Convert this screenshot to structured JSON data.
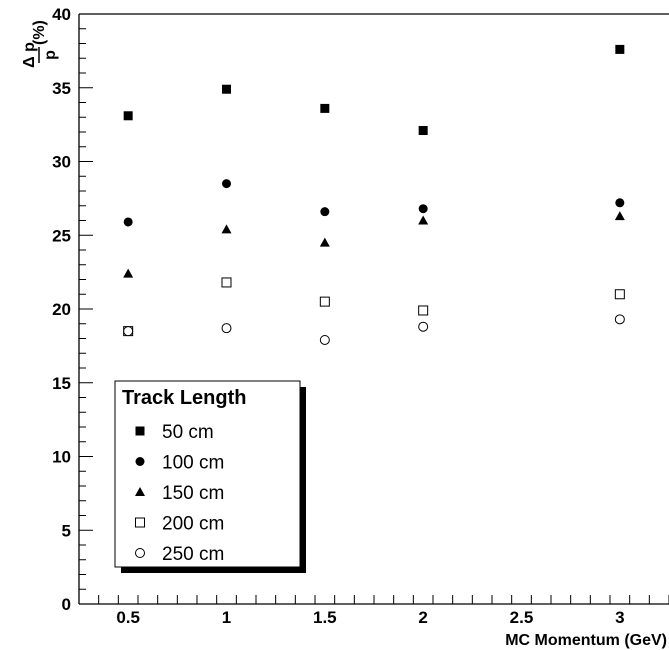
{
  "chart_data": {
    "type": "scatter",
    "xlabel": "MC Momentum (GeV)",
    "ylabel_numerator": "Δ p",
    "ylabel_denominator": "p",
    "ylabel_suffix": "(%)",
    "xlim": [
      0.25,
      3.25
    ],
    "ylim": [
      0,
      40
    ],
    "x_ticks": [
      "0.5",
      "1",
      "1.5",
      "2",
      "2.5",
      "3"
    ],
    "y_ticks": [
      "0",
      "5",
      "10",
      "15",
      "20",
      "25",
      "30",
      "35",
      "40"
    ],
    "grid": false,
    "legend": {
      "title": "Track Length",
      "placement": "bottom-left"
    },
    "series": [
      {
        "name": "50 cm",
        "marker": "filled-square",
        "x": [
          0.5,
          1,
          1.5,
          2,
          3
        ],
        "y": [
          33.1,
          34.9,
          33.6,
          32.1,
          37.6
        ]
      },
      {
        "name": "100 cm",
        "marker": "filled-circle",
        "x": [
          0.5,
          1,
          1.5,
          2,
          3
        ],
        "y": [
          25.9,
          28.5,
          26.6,
          26.8,
          27.2
        ]
      },
      {
        "name": "150 cm",
        "marker": "filled-triangle",
        "x": [
          0.5,
          1,
          1.5,
          2,
          3
        ],
        "y": [
          22.4,
          25.4,
          24.5,
          26.0,
          26.3
        ]
      },
      {
        "name": "200 cm",
        "marker": "open-square",
        "x": [
          0.5,
          1,
          1.5,
          2,
          3
        ],
        "y": [
          18.5,
          21.8,
          20.5,
          19.9,
          21.0
        ]
      },
      {
        "name": "250 cm",
        "marker": "open-circle",
        "x": [
          0.5,
          1,
          1.5,
          2,
          3
        ],
        "y": [
          18.5,
          18.7,
          17.9,
          18.8,
          19.3
        ]
      }
    ]
  }
}
